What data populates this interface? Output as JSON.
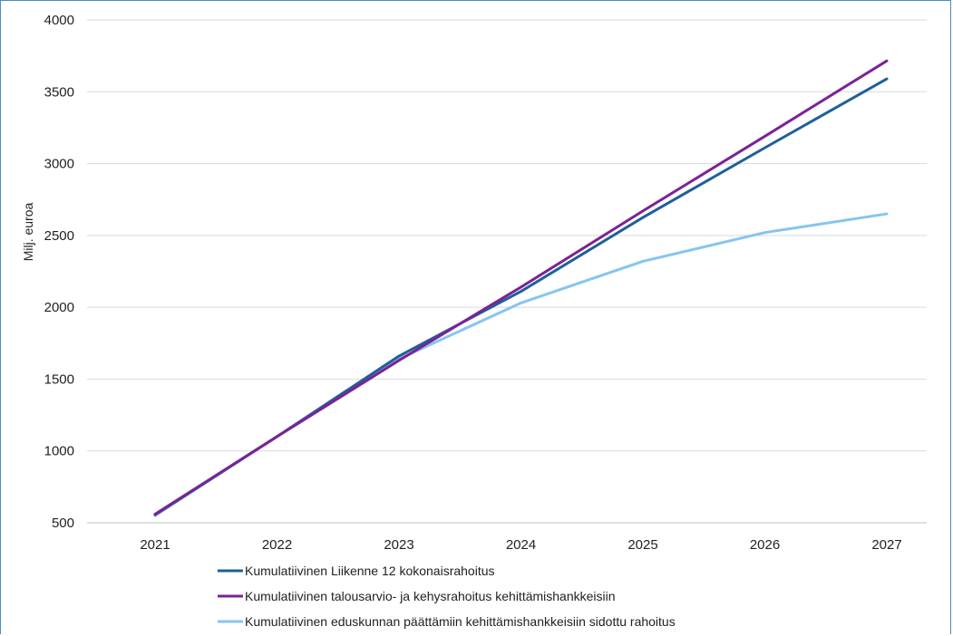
{
  "chart_data": {
    "type": "line",
    "ylabel": "Milj. euroa",
    "xlabel": "",
    "title": "",
    "x": [
      "2021",
      "2022",
      "2023",
      "2024",
      "2025",
      "2026",
      "2027"
    ],
    "ylim": [
      500,
      4000
    ],
    "yticks": [
      500,
      1000,
      1500,
      2000,
      2500,
      3000,
      3500,
      4000
    ],
    "grid": true,
    "legend_position": "bottom",
    "series": [
      {
        "name": "Kumulatiivinen Liikenne 12 kokonaisrahoitus",
        "color": "#1f5f99",
        "values": [
          555,
          1100,
          1660,
          2110,
          2625,
          3110,
          3590
        ]
      },
      {
        "name": "Kumulatiivinen talousarvio- ja kehysrahoitus kehittämishankkeisiin",
        "color": "#7b2396",
        "values": [
          560,
          1100,
          1630,
          2140,
          2670,
          3190,
          3715
        ]
      },
      {
        "name": "Kumulatiivinen eduskunnan päättämiin kehittämishankkeisiin sidottu rahoitus",
        "color": "#86c5f0",
        "values": [
          550,
          1100,
          1640,
          2030,
          2320,
          2520,
          2650
        ]
      }
    ]
  }
}
